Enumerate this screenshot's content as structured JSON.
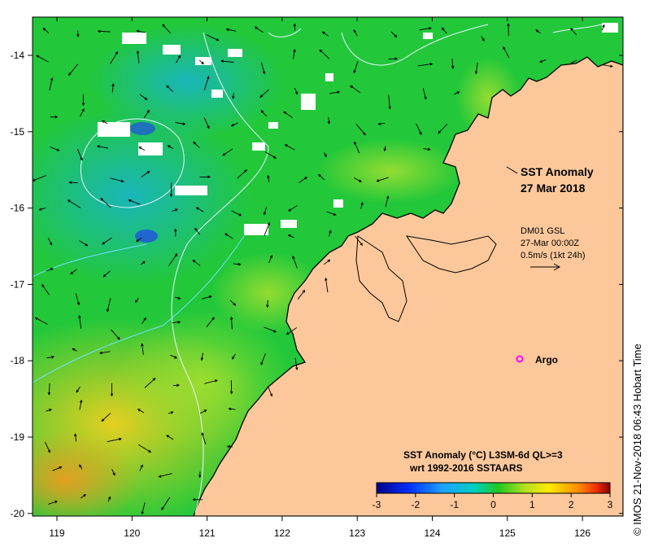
{
  "title": {
    "line1": "SST Anomaly",
    "line2": "27 Mar 2018"
  },
  "currents": {
    "source": "DM01 GSL",
    "time": "27-Mar 00:00Z",
    "scale": "0.5m/s (1kt 24h)"
  },
  "argo": {
    "label": "Argo",
    "marker_color": "#ff00ff"
  },
  "colorbar": {
    "title": "SST Anomaly (°C) L3SM-6d QL>=3",
    "subtitle": "wrt 1992-2016 SSTAARS",
    "ticks": [
      "-3",
      "-2",
      "-1",
      "0",
      "1",
      "2",
      "3"
    ],
    "colors": [
      "#00008b",
      "#0000ff",
      "#1e90ff",
      "#00ced1",
      "#00c800",
      "#9acd32",
      "#ffff00",
      "#ffa500",
      "#ff4500",
      "#8b0000"
    ]
  },
  "axes": {
    "longitude_labels": [
      "119",
      "120",
      "121",
      "122",
      "123",
      "124",
      "125",
      "126"
    ],
    "latitude_labels": [
      "-14",
      "-15",
      "-16",
      "-17",
      "-18",
      "-19",
      "-20"
    ]
  },
  "credit": "© IMOS 21-Nov-2018 06:43 Hobart Time",
  "colors": {
    "land": "#fcc89b",
    "ocean_base": "#22c83a",
    "contour": "#e8f4ff"
  }
}
